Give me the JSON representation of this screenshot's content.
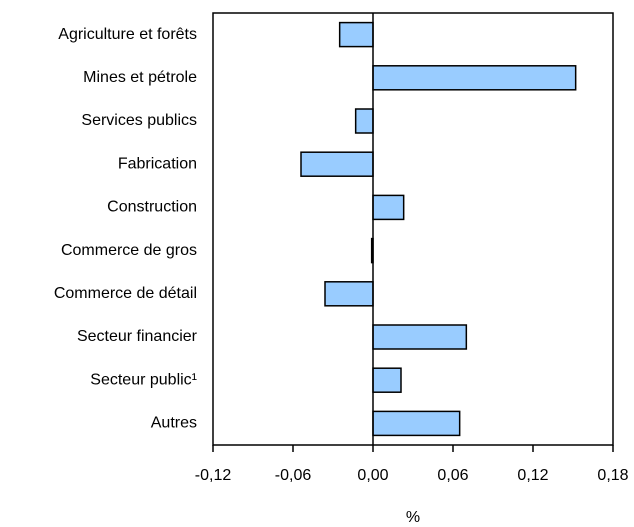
{
  "chart_data": {
    "type": "bar",
    "orientation": "horizontal",
    "categories": [
      "Agriculture et forêts",
      "Mines et pétrole",
      "Services publics",
      "Fabrication",
      "Construction",
      "Commerce de gros",
      "Commerce de détail",
      "Secteur financier",
      "Secteur public¹",
      "Autres"
    ],
    "values": [
      -0.025,
      0.152,
      -0.013,
      -0.054,
      0.023,
      -0.001,
      -0.036,
      0.07,
      0.021,
      0.065
    ],
    "color": "#99ccff",
    "xlabel": "%",
    "xlim": [
      -0.12,
      0.18
    ],
    "xticks": [
      {
        "value": -0.12,
        "label": "-0,12"
      },
      {
        "value": -0.06,
        "label": "-0,06"
      },
      {
        "value": 0,
        "label": "0,00"
      },
      {
        "value": 0.06,
        "label": "0,06"
      },
      {
        "value": 0.12,
        "label": "0,12"
      },
      {
        "value": 0.18,
        "label": "0,18"
      }
    ]
  }
}
